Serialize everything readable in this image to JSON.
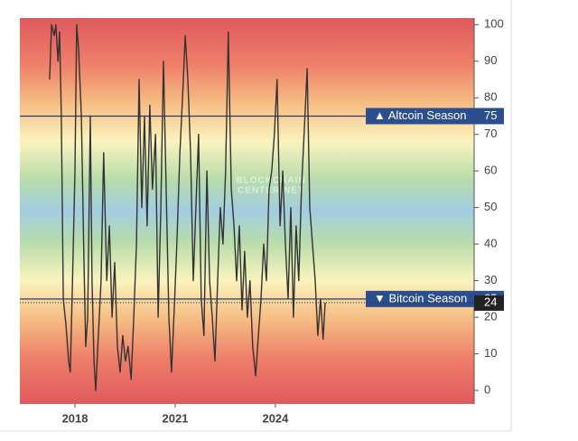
{
  "chart_data": {
    "type": "line",
    "watermark": [
      "BLOCKCHAIN",
      "CENTER.NET"
    ],
    "x": [
      2017.24,
      2017.3,
      2017.38,
      2017.43,
      2017.49,
      2017.54,
      2017.59,
      2017.65,
      2017.73,
      2017.81,
      2017.86,
      2017.92,
      2018.0,
      2018.05,
      2018.11,
      2018.19,
      2018.27,
      2018.32,
      2018.38,
      2018.46,
      2018.51,
      2018.57,
      2018.62,
      2018.7,
      2018.78,
      2018.86,
      2018.95,
      2019.03,
      2019.11,
      2019.19,
      2019.27,
      2019.35,
      2019.43,
      2019.51,
      2019.59,
      2019.68,
      2019.76,
      2019.84,
      2019.92,
      2020.0,
      2020.08,
      2020.16,
      2020.24,
      2020.32,
      2020.41,
      2020.49,
      2020.57,
      2020.65,
      2020.73,
      2020.81,
      2020.89,
      2020.97,
      2021.05,
      2021.14,
      2021.22,
      2021.3,
      2021.38,
      2021.46,
      2021.54,
      2021.62,
      2021.7,
      2021.78,
      2021.86,
      2021.95,
      2022.03,
      2022.11,
      2022.19,
      2022.27,
      2022.35,
      2022.43,
      2022.51,
      2022.59,
      2022.68,
      2022.76,
      2022.84,
      2022.92,
      2023.0,
      2023.08,
      2023.16,
      2023.24,
      2023.32,
      2023.41,
      2023.49,
      2023.57,
      2023.65,
      2023.73,
      2023.81,
      2023.89,
      2023.97,
      2024.05,
      2024.14,
      2024.22,
      2024.3,
      2024.38,
      2024.46,
      2024.54,
      2024.62,
      2024.7,
      2024.78,
      2024.86,
      2024.95,
      2025.03,
      2025.11,
      2025.19,
      2025.27,
      2025.35,
      2025.43,
      2025.49
    ],
    "values": [
      85,
      100,
      97,
      100,
      90,
      98,
      75,
      25,
      18,
      8,
      5,
      28,
      60,
      100,
      93,
      75,
      35,
      12,
      20,
      75,
      30,
      8,
      0,
      15,
      30,
      65,
      30,
      45,
      20,
      35,
      12,
      5,
      15,
      8,
      12,
      3,
      20,
      40,
      85,
      50,
      75,
      45,
      78,
      55,
      70,
      20,
      50,
      90,
      55,
      20,
      5,
      22,
      40,
      65,
      80,
      97,
      85,
      65,
      30,
      50,
      70,
      25,
      15,
      60,
      30,
      20,
      8,
      30,
      50,
      40,
      60,
      98,
      55,
      45,
      30,
      45,
      22,
      38,
      20,
      30,
      12,
      4,
      15,
      25,
      40,
      30,
      55,
      60,
      70,
      85,
      45,
      60,
      40,
      25,
      50,
      20,
      45,
      30,
      55,
      70,
      88,
      50,
      40,
      30,
      15,
      25,
      14,
      24
    ],
    "color": "#333333",
    "xlim": [
      2016.35,
      2029.95
    ],
    "xticks": [
      2018,
      2021,
      2024
    ],
    "ylim": [
      -3.7,
      101.8
    ],
    "yticks": [
      0,
      10,
      20,
      30,
      40,
      50,
      60,
      70,
      80,
      90,
      100
    ],
    "annotations": [
      {
        "label": "▲ Altcoin Season",
        "value": 75
      },
      {
        "label": "▼ Bitcoin Season",
        "value": 25
      }
    ]
  }
}
